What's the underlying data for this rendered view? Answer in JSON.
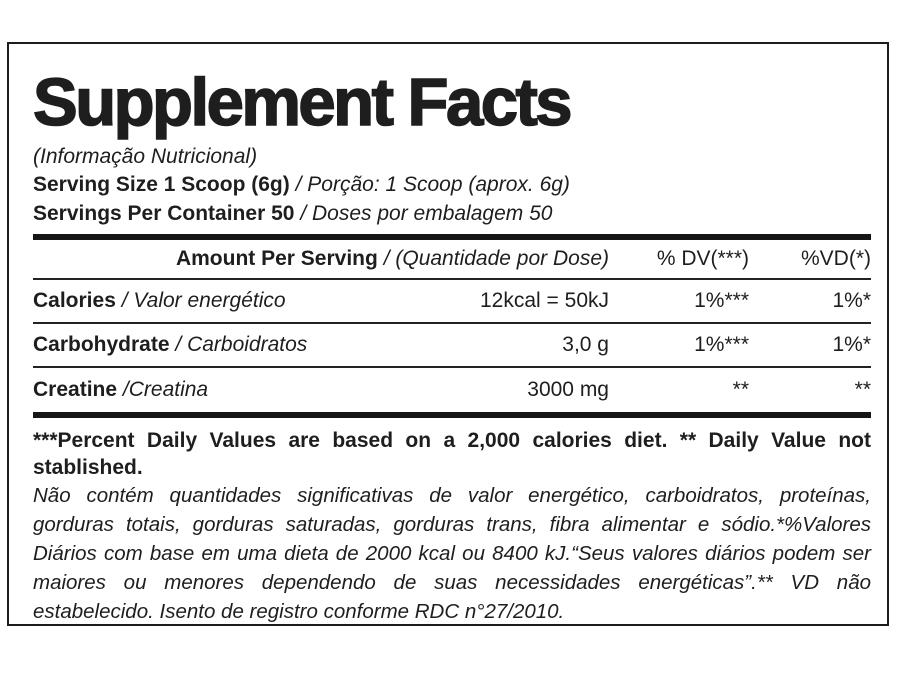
{
  "label": {
    "title": "Supplement Facts",
    "subtitle": "(Informação Nutricional)",
    "serving_size": {
      "en": "Serving Size 1 Scoop (6g)",
      "pt": "/ Porção: 1 Scoop (aprox. 6g)"
    },
    "servings_per_container": {
      "en": "Servings Per Container 50",
      "pt": "/ Doses por embalagem 50"
    },
    "table": {
      "header": {
        "amount_en": "Amount Per Serving",
        "amount_pt": "/ (Quantidade por Dose)",
        "dv": "% DV(***)",
        "vd": "%VD(*)"
      },
      "rows": [
        {
          "name_en": "Calories",
          "name_pt": "/ Valor energético",
          "amount": "12kcal = 50kJ",
          "dv": "1%***",
          "vd": "1%*"
        },
        {
          "name_en": "Carbohydrate",
          "name_pt": "/ Carboidratos",
          "amount": "3,0 g",
          "dv": "1%***",
          "vd": "1%*"
        },
        {
          "name_en": "Creatine",
          "name_pt": "/Creatina",
          "amount": "3000 mg",
          "dv": "**",
          "vd": "**"
        }
      ]
    },
    "footnote_en": "***Percent Daily Values are based on a 2,000 calories diet. ** Daily Value not stablished.",
    "footnote_pt": "Não contém quantidades significativas de valor energético, carboidratos, proteínas, gorduras totais, gorduras saturadas, gorduras trans, fibra alimentar e sódio.*%Valores Diários com base em uma dieta de 2000 kcal ou 8400 kJ.“Seus valores diários podem ser maiores ou menores dependendo de suas necessidades energéticas”.** VD não estabelecido. Isento de registro conforme RDC n°27/2010.",
    "colors": {
      "text": "#1e1e1e",
      "background": "#ffffff",
      "border": "#1c1c1c"
    }
  }
}
